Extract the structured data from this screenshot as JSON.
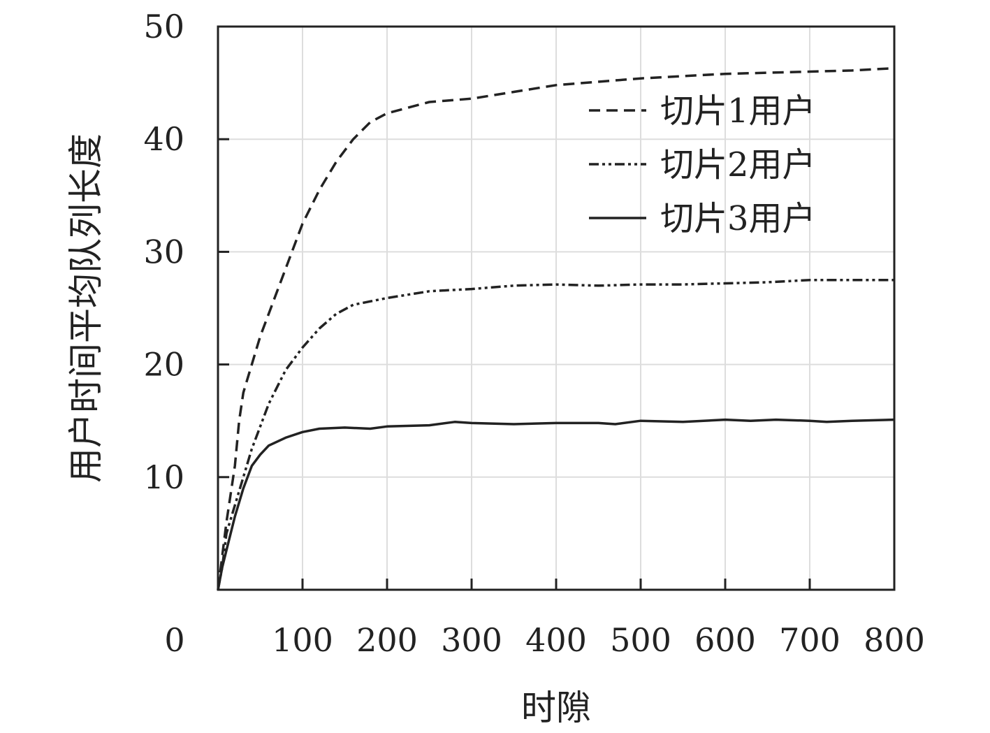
{
  "chart_data": {
    "type": "line",
    "title": "",
    "xlabel": "时隙",
    "ylabel": "用户时间平均队列长度",
    "xlim": [
      0,
      800
    ],
    "ylim": [
      0,
      50
    ],
    "x_ticks": [
      "0",
      "100",
      "200",
      "300",
      "400",
      "500",
      "600",
      "700",
      "800"
    ],
    "y_ticks": [
      "10",
      "20",
      "30",
      "40",
      "50"
    ],
    "grid": true,
    "legend_position": "top-right",
    "series": [
      {
        "name": "切片1用户",
        "style": "dashed",
        "color": "#222222",
        "points": [
          [
            0,
            0
          ],
          [
            5,
            3
          ],
          [
            10,
            6
          ],
          [
            20,
            11
          ],
          [
            25,
            15
          ],
          [
            30,
            17.5
          ],
          [
            40,
            20
          ],
          [
            50,
            22.5
          ],
          [
            60,
            24.5
          ],
          [
            70,
            26.5
          ],
          [
            80,
            28.5
          ],
          [
            100,
            32.5
          ],
          [
            120,
            35.5
          ],
          [
            140,
            38
          ],
          [
            160,
            40
          ],
          [
            180,
            41.5
          ],
          [
            200,
            42.3
          ],
          [
            250,
            43.3
          ],
          [
            300,
            43.6
          ],
          [
            350,
            44.2
          ],
          [
            400,
            44.8
          ],
          [
            450,
            45.1
          ],
          [
            500,
            45.4
          ],
          [
            550,
            45.6
          ],
          [
            600,
            45.8
          ],
          [
            650,
            45.9
          ],
          [
            700,
            46
          ],
          [
            750,
            46.1
          ],
          [
            800,
            46.3
          ]
        ]
      },
      {
        "name": "切片2用户",
        "style": "dashdot",
        "color": "#222222",
        "points": [
          [
            0,
            0
          ],
          [
            5,
            2
          ],
          [
            10,
            5
          ],
          [
            20,
            7.5
          ],
          [
            30,
            10
          ],
          [
            40,
            12.5
          ],
          [
            50,
            14.5
          ],
          [
            60,
            16.5
          ],
          [
            70,
            18
          ],
          [
            80,
            19.5
          ],
          [
            100,
            21.5
          ],
          [
            120,
            23.2
          ],
          [
            140,
            24.5
          ],
          [
            160,
            25.3
          ],
          [
            180,
            25.6
          ],
          [
            200,
            25.9
          ],
          [
            250,
            26.5
          ],
          [
            300,
            26.7
          ],
          [
            350,
            27
          ],
          [
            400,
            27.1
          ],
          [
            450,
            27
          ],
          [
            500,
            27.1
          ],
          [
            550,
            27.1
          ],
          [
            600,
            27.2
          ],
          [
            650,
            27.3
          ],
          [
            700,
            27.5
          ],
          [
            750,
            27.5
          ],
          [
            800,
            27.5
          ]
        ]
      },
      {
        "name": "切片3用户",
        "style": "solid",
        "color": "#222222",
        "points": [
          [
            0,
            0
          ],
          [
            5,
            2
          ],
          [
            10,
            3.5
          ],
          [
            20,
            6.5
          ],
          [
            30,
            9
          ],
          [
            40,
            11
          ],
          [
            50,
            12
          ],
          [
            60,
            12.8
          ],
          [
            80,
            13.5
          ],
          [
            100,
            14
          ],
          [
            120,
            14.3
          ],
          [
            150,
            14.4
          ],
          [
            180,
            14.3
          ],
          [
            200,
            14.5
          ],
          [
            250,
            14.6
          ],
          [
            280,
            14.9
          ],
          [
            300,
            14.8
          ],
          [
            350,
            14.7
          ],
          [
            400,
            14.8
          ],
          [
            450,
            14.8
          ],
          [
            470,
            14.7
          ],
          [
            500,
            15
          ],
          [
            550,
            14.9
          ],
          [
            600,
            15.1
          ],
          [
            630,
            15
          ],
          [
            660,
            15.1
          ],
          [
            700,
            15
          ],
          [
            720,
            14.9
          ],
          [
            750,
            15
          ],
          [
            800,
            15.1
          ]
        ]
      }
    ]
  }
}
